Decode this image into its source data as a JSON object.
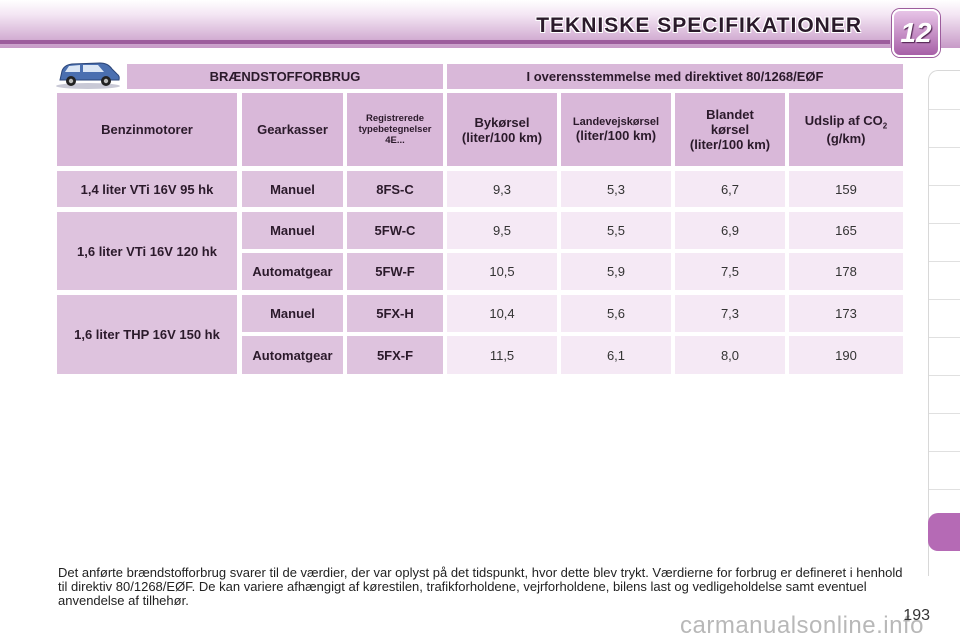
{
  "header": {
    "title": "TEKNISKE SPECIFIKATIONER",
    "chapter": "12"
  },
  "table": {
    "banner_left": "BRÆNDSTOFFORBRUG",
    "banner_right": "I overensstemmelse med direktivet 80/1268/EØF",
    "columns": {
      "engine": "Benzinmotorer",
      "gearbox": "Gearkasser",
      "registered_line1": "Registrerede",
      "registered_line2": "typebetegnelser",
      "registered_line3": "4E...",
      "city_line1": "Bykørsel",
      "city_line2": "(liter/100 km)",
      "highway_line1": "Landevejskørsel",
      "highway_line2": "(liter/100 km)",
      "mixed_line1": "Blandet",
      "mixed_line2": "kørsel",
      "mixed_line3": "(liter/100 km)",
      "co2_line1": "Udslip af CO",
      "co2_sub": "2",
      "co2_line2": "(g/km)"
    },
    "engines": [
      "1,4 liter VTi 16V 95 hk",
      "1,6 liter VTi 16V 120 hk",
      "1,6 liter THP 16V 150 hk"
    ],
    "rows": [
      {
        "gearbox": "Manuel",
        "type": "8FS-C",
        "city": "9,3",
        "highway": "5,3",
        "mixed": "6,7",
        "co2": "159"
      },
      {
        "gearbox": "Manuel",
        "type": "5FW-C",
        "city": "9,5",
        "highway": "5,5",
        "mixed": "6,9",
        "co2": "165"
      },
      {
        "gearbox": "Automatgear",
        "type": "5FW-F",
        "city": "10,5",
        "highway": "5,9",
        "mixed": "7,5",
        "co2": "178"
      },
      {
        "gearbox": "Manuel",
        "type": "5FX-H",
        "city": "10,4",
        "highway": "5,6",
        "mixed": "7,3",
        "co2": "173"
      },
      {
        "gearbox": "Automatgear",
        "type": "5FX-F",
        "city": "11,5",
        "highway": "6,1",
        "mixed": "8,0",
        "co2": "190"
      }
    ]
  },
  "footnote": "Det anførte brændstofforbrug svarer til de værdier, der var oplyst på det tidspunkt, hvor dette blev trykt. Værdierne for forbrug er defineret i henhold til direktiv 80/1268/EØF. De kan variere afhængigt af kørestilen, trafikforholdene, vejrforholdene, bilens last og vedligeholdelse samt eventuel anvendelse af tilhehør.",
  "page_number": "193",
  "watermark": "carmanualsonline.info",
  "icons": {
    "car": "car-icon"
  },
  "colors": {
    "accent": "#b56ab5",
    "header_cell": "#d9b8d9",
    "value_cell": "#f5e9f5"
  }
}
